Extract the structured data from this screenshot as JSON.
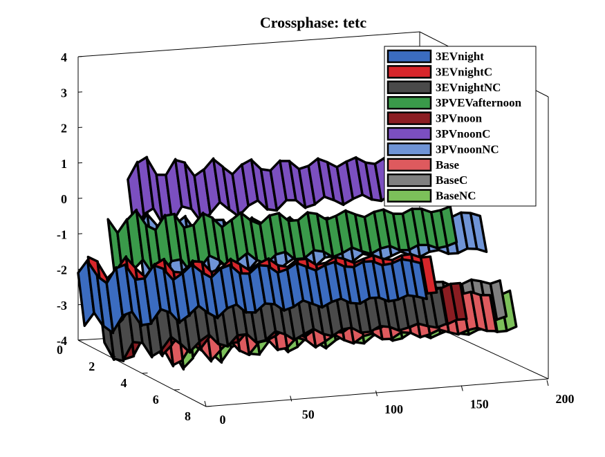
{
  "chart_data": {
    "type": "surface3d",
    "title": "Crossphase: tetc",
    "xlabel": "",
    "ylabel": "",
    "zlabel": "",
    "x_ticks": [
      "0",
      "50",
      "100",
      "150",
      "200"
    ],
    "y_ticks": [
      "0",
      "2",
      "4",
      "6",
      "8"
    ],
    "z_ticks": [
      "4",
      "3",
      "2",
      "1",
      "0",
      "-1",
      "-2",
      "-3",
      "-4"
    ],
    "xlim": [
      0,
      200
    ],
    "ylim": [
      0,
      8
    ],
    "zlim": [
      -4,
      4
    ],
    "grid": false,
    "legend_position": "top-right",
    "series": [
      {
        "name": "3EVnight",
        "color": "#3b6cc0",
        "y_index": 1,
        "level": -2.8
      },
      {
        "name": "3EVnightC",
        "color": "#d7262b",
        "y_index": 2,
        "level": -2.5
      },
      {
        "name": "3EVnightNC",
        "color": "#4a4a4a",
        "y_index": 3,
        "level": -3.3
      },
      {
        "name": "3PVEVafternoon",
        "color": "#3a9a4a",
        "y_index": 4,
        "level": -0.9
      },
      {
        "name": "3PVnoon",
        "color": "#8b1d22",
        "y_index": 5,
        "level": -2.9
      },
      {
        "name": "3PVnoonC",
        "color": "#7b4fc0",
        "y_index": 6,
        "level": 0.9
      },
      {
        "name": "3PVnoonNC",
        "color": "#6f94d6",
        "y_index": 7,
        "level": -0.6
      },
      {
        "name": "Base",
        "color": "#de5a5e",
        "y_index": 8,
        "level": -2.7
      },
      {
        "name": "BaseC",
        "color": "#808080",
        "y_index": 9,
        "level": -2.2
      },
      {
        "name": "BaseNC",
        "color": "#7cc05a",
        "y_index": 10,
        "level": -2.4
      }
    ]
  }
}
